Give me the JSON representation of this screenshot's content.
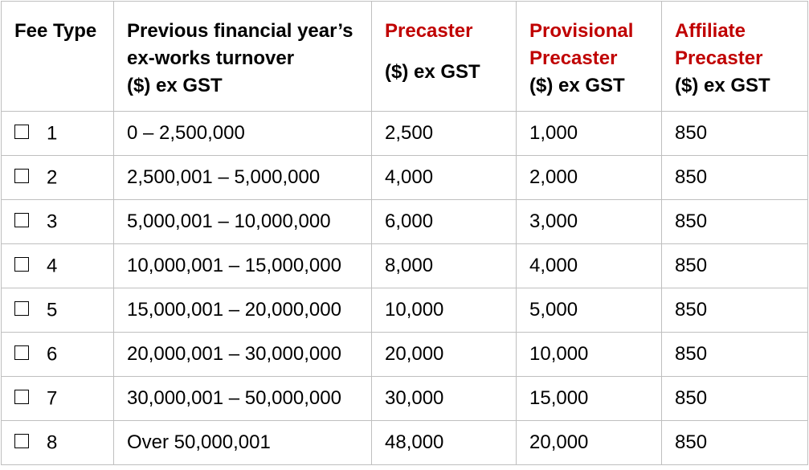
{
  "header": {
    "fee_type": "Fee Type",
    "turnover_line1": "Previous financial year’s",
    "turnover_line2": "ex-works turnover",
    "turnover_line3": "($) ex GST",
    "precaster_line1": "Precaster",
    "precaster_line2": "($) ex GST",
    "provisional_line1": "Provisional",
    "provisional_line2": "Precaster",
    "provisional_line3": "($) ex GST",
    "affiliate_line1": "Affiliate",
    "affiliate_line2": "Precaster",
    "affiliate_line3": "($) ex GST"
  },
  "colors": {
    "accent_red": "#c00000",
    "border": "#bfbfbf"
  },
  "rows": [
    {
      "fee_type": "1",
      "turnover": "0 – 2,500,000",
      "precaster": "2,500",
      "provisional": "1,000",
      "affiliate": "850",
      "checked": false
    },
    {
      "fee_type": "2",
      "turnover": "2,500,001 – 5,000,000",
      "precaster": "4,000",
      "provisional": "2,000",
      "affiliate": "850",
      "checked": false
    },
    {
      "fee_type": "3",
      "turnover": "5,000,001 – 10,000,000",
      "precaster": "6,000",
      "provisional": "3,000",
      "affiliate": "850",
      "checked": false
    },
    {
      "fee_type": "4",
      "turnover": "10,000,001 – 15,000,000",
      "precaster": "8,000",
      "provisional": "4,000",
      "affiliate": "850",
      "checked": false
    },
    {
      "fee_type": "5",
      "turnover": "15,000,001 – 20,000,000",
      "precaster": "10,000",
      "provisional": "5,000",
      "affiliate": "850",
      "checked": false
    },
    {
      "fee_type": "6",
      "turnover": "20,000,001 – 30,000,000",
      "precaster": "20,000",
      "provisional": "10,000",
      "affiliate": "850",
      "checked": false
    },
    {
      "fee_type": "7",
      "turnover": "30,000,001 – 50,000,000",
      "precaster": "30,000",
      "provisional": "15,000",
      "affiliate": "850",
      "checked": false
    },
    {
      "fee_type": "8",
      "turnover": "Over 50,000,001",
      "precaster": "48,000",
      "provisional": "20,000",
      "affiliate": "850",
      "checked": false
    }
  ]
}
